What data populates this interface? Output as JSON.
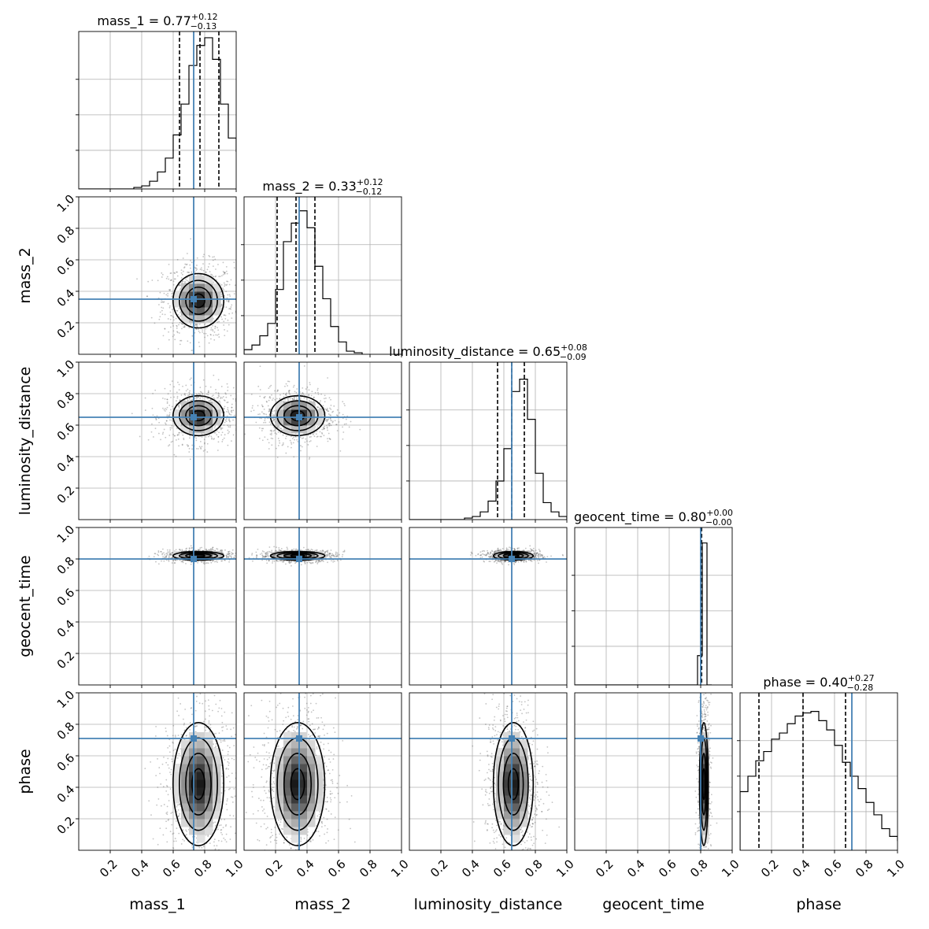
{
  "chart_data": {
    "type": "corner",
    "parameters": [
      "mass_1",
      "mass_2",
      "luminosity_distance",
      "geocent_time",
      "phase"
    ],
    "axis_range": [
      0,
      1
    ],
    "tick_labels": [
      "0.2",
      "0.4",
      "0.6",
      "0.8",
      "1.0"
    ],
    "grid": true,
    "truth_color": "#4682b4",
    "titles": [
      {
        "name": "mass_1",
        "value": "0.77",
        "plus": "+0.12",
        "minus": "−0.13"
      },
      {
        "name": "mass_2",
        "value": "0.33",
        "plus": "+0.12",
        "minus": "−0.12"
      },
      {
        "name": "luminosity_distance",
        "value": "0.65",
        "plus": "+0.08",
        "minus": "−0.09"
      },
      {
        "name": "geocent_time",
        "value": "0.80",
        "plus": "+0.00",
        "minus": "−0.00"
      },
      {
        "name": "phase",
        "value": "0.40",
        "plus": "+0.27",
        "minus": "−0.28"
      }
    ],
    "truths": [
      0.73,
      0.35,
      0.65,
      0.8,
      0.71
    ],
    "quantiles": [
      [
        0.64,
        0.77,
        0.89
      ],
      [
        0.21,
        0.33,
        0.45
      ],
      [
        0.56,
        0.65,
        0.73
      ],
      [
        0.8,
        0.8,
        0.8
      ],
      [
        0.12,
        0.4,
        0.67
      ]
    ],
    "histograms": [
      {
        "bins": [
          0.35,
          0.4,
          0.45,
          0.5,
          0.55,
          0.6,
          0.65,
          0.7,
          0.75,
          0.8,
          0.85,
          0.9,
          0.95,
          1.0
        ],
        "counts": [
          0.01,
          0.02,
          0.05,
          0.11,
          0.2,
          0.35,
          0.55,
          0.8,
          0.93,
          0.98,
          0.84,
          0.55,
          0.33,
          0.24
        ]
      },
      {
        "bins": [
          0.0,
          0.05,
          0.1,
          0.15,
          0.2,
          0.25,
          0.3,
          0.35,
          0.4,
          0.45,
          0.5,
          0.55,
          0.6,
          0.65,
          0.7,
          0.75
        ],
        "counts": [
          0.03,
          0.06,
          0.12,
          0.2,
          0.42,
          0.73,
          0.85,
          0.93,
          0.82,
          0.57,
          0.36,
          0.18,
          0.08,
          0.02,
          0.01
        ]
      },
      {
        "bins": [
          0.3,
          0.35,
          0.4,
          0.45,
          0.5,
          0.55,
          0.6,
          0.65,
          0.7,
          0.75,
          0.8,
          0.85,
          0.9,
          0.95,
          1.0
        ],
        "counts": [
          0.0,
          0.01,
          0.02,
          0.05,
          0.12,
          0.25,
          0.46,
          0.83,
          0.91,
          0.65,
          0.3,
          0.11,
          0.05,
          0.02
        ]
      },
      {
        "bins": [
          0.75,
          0.78,
          0.81,
          0.84,
          0.87
        ],
        "counts": [
          0.0,
          0.19,
          0.92,
          0.0
        ]
      },
      {
        "bins": [
          0.0,
          0.05,
          0.1,
          0.15,
          0.2,
          0.25,
          0.3,
          0.35,
          0.4,
          0.45,
          0.5,
          0.55,
          0.6,
          0.65,
          0.7,
          0.75,
          0.8,
          0.85,
          0.9,
          0.95,
          1.0
        ],
        "counts": [
          0.38,
          0.48,
          0.58,
          0.64,
          0.72,
          0.76,
          0.82,
          0.87,
          0.89,
          0.9,
          0.84,
          0.78,
          0.68,
          0.57,
          0.48,
          0.4,
          0.31,
          0.23,
          0.14,
          0.09,
          0.06
        ]
      }
    ],
    "distributions": [
      {
        "mean": 0.76,
        "sd": 0.07
      },
      {
        "mean": 0.34,
        "sd": 0.075
      },
      {
        "mean": 0.66,
        "sd": 0.055
      },
      {
        "mean": 0.82,
        "sd": 0.012
      },
      {
        "mean": 0.42,
        "sd": 0.17
      }
    ]
  }
}
